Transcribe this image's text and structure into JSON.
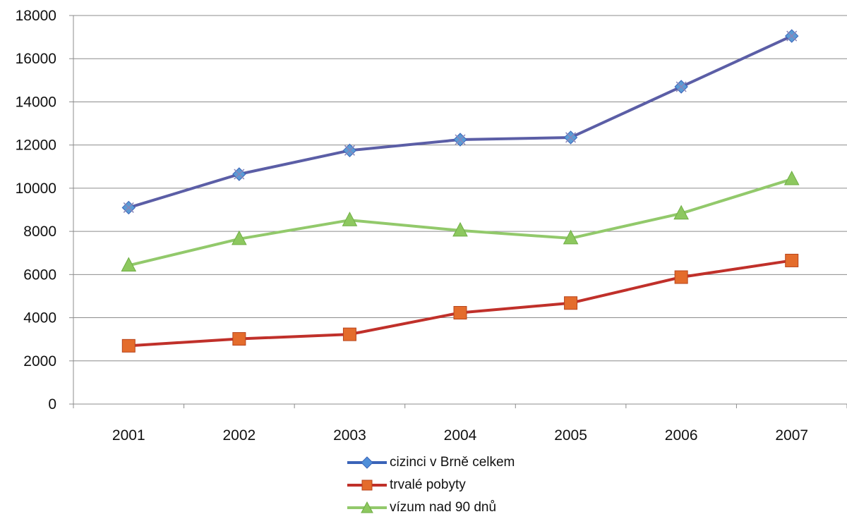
{
  "chart_data": {
    "type": "line",
    "categories": [
      "2001",
      "2002",
      "2003",
      "2004",
      "2005",
      "2006",
      "2007"
    ],
    "ylim": [
      0,
      18000
    ],
    "yticks": [
      0,
      2000,
      4000,
      6000,
      8000,
      10000,
      12000,
      14000,
      16000,
      18000
    ],
    "grid": true,
    "legend_position": "bottom",
    "title": "",
    "xlabel": "",
    "ylabel": "",
    "series": [
      {
        "name": "cizinci v Brně celkem",
        "color": "#5B5EA6",
        "marker_color": "#5B9BD5",
        "marker": "diamond",
        "values": [
          9100,
          10650,
          11750,
          12250,
          12350,
          14700,
          17050
        ]
      },
      {
        "name": "trvalé pobyty",
        "color": "#C0302A",
        "marker_color": "#E46C2C",
        "marker": "square",
        "values": [
          2700,
          3020,
          3230,
          4230,
          4680,
          5880,
          6650
        ]
      },
      {
        "name": "vízum nad 90 dnů",
        "color": "#92C96B",
        "marker_color": "#8DC85F",
        "marker": "triangle",
        "values": [
          6420,
          7650,
          8520,
          8040,
          7680,
          8830,
          10420
        ]
      }
    ]
  }
}
